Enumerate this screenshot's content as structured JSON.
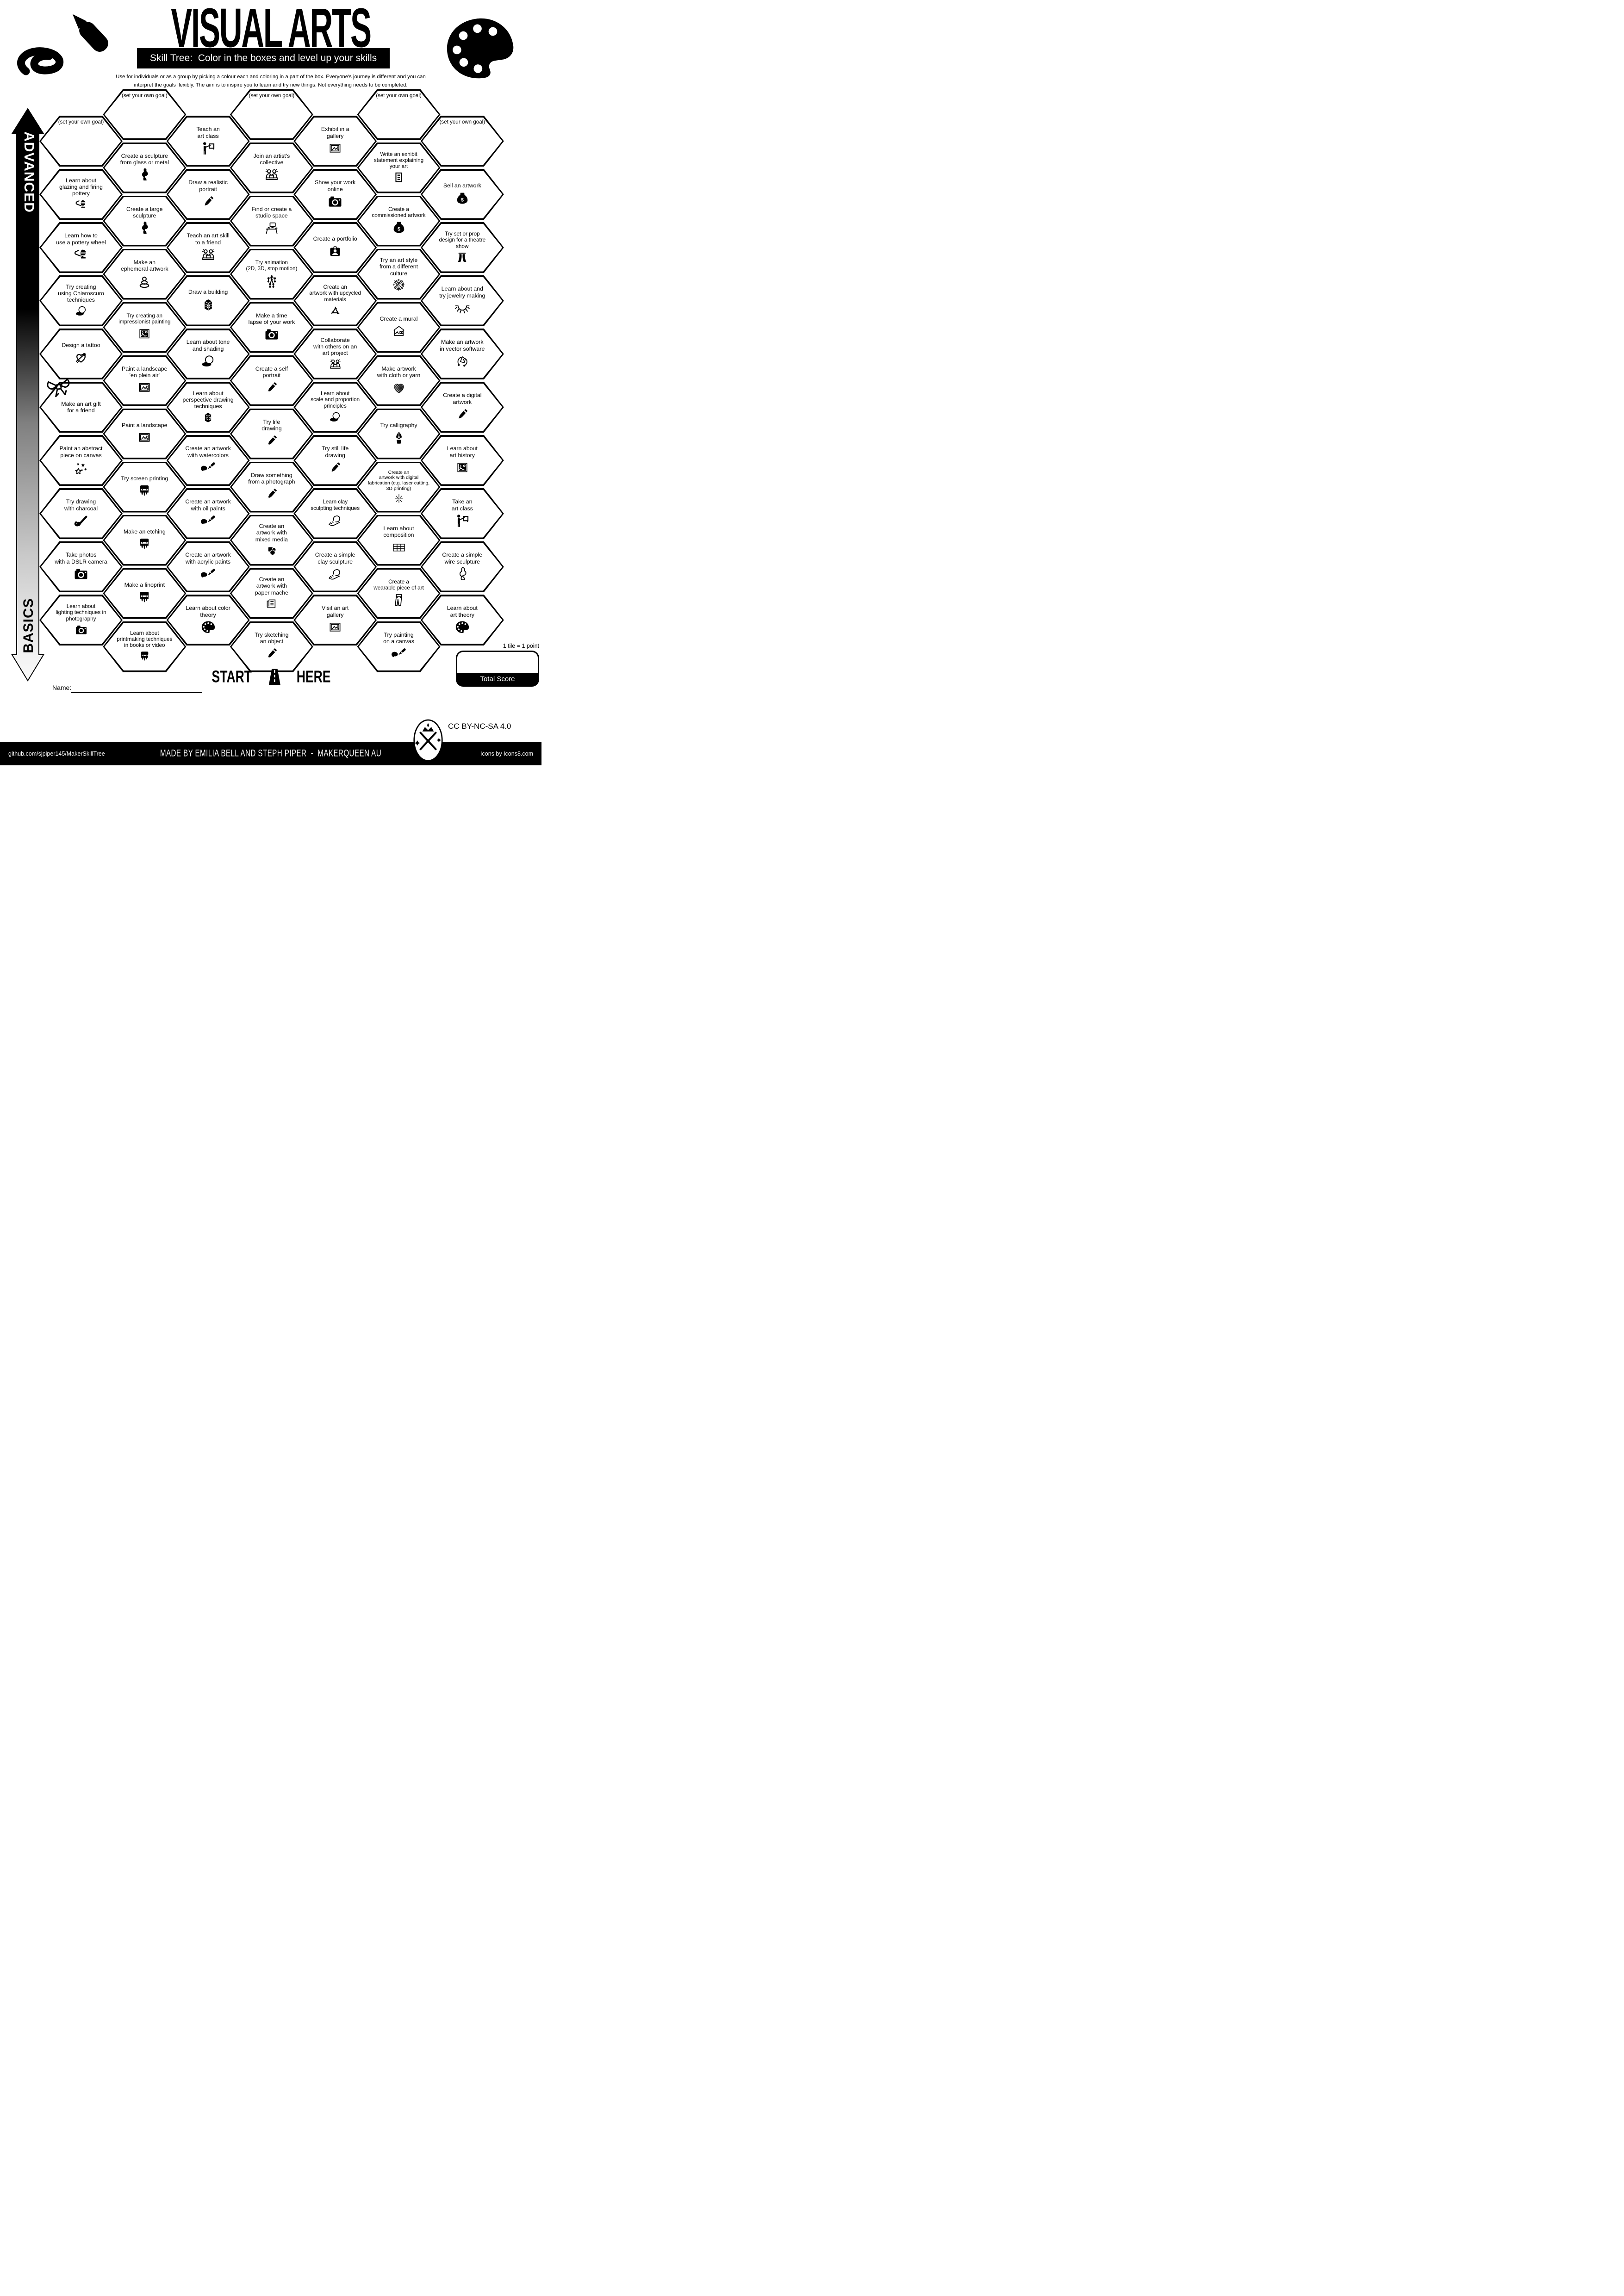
{
  "header": {
    "title": "VISUAL ARTS",
    "subtitle": "Skill Tree:  Color in the boxes and level up your skills",
    "description": "Use for individuals or as a group by picking a colour each and coloring in a part of the box.  Everyone's journey is different and you can\ninterpret the goals flexibly.  The aim is to inspire you to learn and try new things. Not everything needs to be completed."
  },
  "axis": {
    "top_label": "ADVANCED",
    "bottom_label": "BASICS"
  },
  "start": {
    "start_label": "START",
    "here_label": "HERE",
    "icon": "road-icon"
  },
  "score": {
    "note": "1 tile = 1 point",
    "total_label": "Total Score"
  },
  "name_label": "Name:",
  "license": "CC BY-NC-SA 4.0",
  "footer": {
    "left": "github.com/sjpiper145/MakerSkillTree",
    "center": "MADE BY EMILIA BELL AND STEPH PIPER  -  MAKERQUEEN AU",
    "right": "Icons by Icons8.com"
  },
  "tiles": [
    {
      "c": 0,
      "r": 0,
      "t": "(set your own goal)",
      "i": null,
      "goal": true
    },
    {
      "c": 0,
      "r": 1,
      "t": "Learn about\nglazing and firing\npottery",
      "i": "pottery-icon"
    },
    {
      "c": 0,
      "r": 2,
      "t": "Learn how to\nuse a pottery wheel",
      "i": "pottery-icon"
    },
    {
      "c": 0,
      "r": 3,
      "t": "Try creating\nusing Chiaroscuro\ntechniques",
      "i": "sphere-shadow-icon"
    },
    {
      "c": 0,
      "r": 4,
      "t": "Design a tattoo",
      "i": "tattoo-heart-icon"
    },
    {
      "c": 0,
      "r": 5,
      "t": "Make an art gift\nfor a friend",
      "i": null
    },
    {
      "c": 0,
      "r": 6,
      "t": "Paint an abstract\npiece on canvas",
      "i": "abstract-stars-icon"
    },
    {
      "c": 0,
      "r": 7,
      "t": "Try drawing\nwith charcoal",
      "i": "charcoal-icon"
    },
    {
      "c": 0,
      "r": 8,
      "t": "Take photos\nwith a DSLR camera",
      "i": "camera-icon"
    },
    {
      "c": 0,
      "r": 9,
      "t": "Learn about\nlighting techniques in\nphotography",
      "i": "camera-icon"
    },
    {
      "c": 1,
      "r": 0,
      "t": "(set your own goal)",
      "i": null,
      "goal": true
    },
    {
      "c": 1,
      "r": 1,
      "t": "Create a sculpture\nfrom glass or metal",
      "i": "sculpture-icon"
    },
    {
      "c": 1,
      "r": 2,
      "t": "Create a large\nsculpture",
      "i": "sculpture-icon"
    },
    {
      "c": 1,
      "r": 3,
      "t": "Make an\nephemeral artwork",
      "i": "stones-icon"
    },
    {
      "c": 1,
      "r": 4,
      "t": "Try creating an\nimpressionist painting",
      "i": "framed-art-icon"
    },
    {
      "c": 1,
      "r": 5,
      "t": "Paint a landscape\n'en plein air'",
      "i": "picture-frame-icon"
    },
    {
      "c": 1,
      "r": 6,
      "t": "Paint a landscape",
      "i": "picture-frame-icon"
    },
    {
      "c": 1,
      "r": 7,
      "t": "Try screen printing",
      "i": "squeegee-icon"
    },
    {
      "c": 1,
      "r": 8,
      "t": "Make an etching",
      "i": "squeegee-icon"
    },
    {
      "c": 1,
      "r": 9,
      "t": "Make a linoprint",
      "i": "squeegee-icon"
    },
    {
      "c": 1,
      "r": 10,
      "t": "Learn about\nprintmaking techniques\nin books or video",
      "i": "squeegee-icon"
    },
    {
      "c": 2,
      "r": 0,
      "t": "Teach an\nart class",
      "i": "teacher-icon"
    },
    {
      "c": 2,
      "r": 1,
      "t": "Draw a realistic\nportrait",
      "i": "pencil-icon"
    },
    {
      "c": 2,
      "r": 2,
      "t": "Teach an art skill\nto a friend",
      "i": "two-people-icon"
    },
    {
      "c": 2,
      "r": 3,
      "t": "Draw a building",
      "i": "building-icon"
    },
    {
      "c": 2,
      "r": 4,
      "t": "Learn about tone\nand shading",
      "i": "sphere-shadow-icon"
    },
    {
      "c": 2,
      "r": 5,
      "t": "Learn about\nperspective drawing\ntechniques",
      "i": "building-icon"
    },
    {
      "c": 2,
      "r": 6,
      "t": "Create an artwork\nwith watercolors",
      "i": "paintbrush-icon"
    },
    {
      "c": 2,
      "r": 7,
      "t": "Create an artwork\nwith oil paints",
      "i": "paintbrush-icon"
    },
    {
      "c": 2,
      "r": 8,
      "t": "Create an artwork\nwith acrylic paints",
      "i": "paintbrush-icon"
    },
    {
      "c": 2,
      "r": 9,
      "t": "Learn about color\ntheory",
      "i": "palette-icon"
    },
    {
      "c": 3,
      "r": 0,
      "t": "(set your own goal)",
      "i": null,
      "goal": true
    },
    {
      "c": 3,
      "r": 1,
      "t": "Join an artist's\ncollective",
      "i": "two-people-icon"
    },
    {
      "c": 3,
      "r": 2,
      "t": "Find or create a\nstudio space",
      "i": "desk-icon"
    },
    {
      "c": 3,
      "r": 3,
      "t": "Try animation\n(2D, 3D, stop motion)",
      "i": "animation-icon"
    },
    {
      "c": 3,
      "r": 4,
      "t": "Make a time\nlapse of your work",
      "i": "camera-icon"
    },
    {
      "c": 3,
      "r": 5,
      "t": "Create a self\nportrait",
      "i": "pencil-icon"
    },
    {
      "c": 3,
      "r": 6,
      "t": "Try life\ndrawing",
      "i": "pencil-icon"
    },
    {
      "c": 3,
      "r": 7,
      "t": "Draw something\nfrom a photograph",
      "i": "pencil-icon"
    },
    {
      "c": 3,
      "r": 8,
      "t": "Create an\nartwork with\nmixed media",
      "i": "shapes-icon"
    },
    {
      "c": 3,
      "r": 9,
      "t": "Create an\nartwork with\npaper mache",
      "i": "newspaper-icon"
    },
    {
      "c": 3,
      "r": 10,
      "t": "Try sketching\nan object",
      "i": "pencil-icon"
    },
    {
      "c": 4,
      "r": 0,
      "t": "Exhibit in a\ngallery",
      "i": "picture-frame-icon"
    },
    {
      "c": 4,
      "r": 1,
      "t": "Show your work\nonline",
      "i": "camera-icon"
    },
    {
      "c": 4,
      "r": 2,
      "t": "Create a portfolio",
      "i": "badge-icon"
    },
    {
      "c": 4,
      "r": 3,
      "t": "Create an\nartwork with upcycled\nmaterials",
      "i": "recycle-icon"
    },
    {
      "c": 4,
      "r": 4,
      "t": "Collaborate\nwith others on an\nart project",
      "i": "two-people-icon"
    },
    {
      "c": 4,
      "r": 5,
      "t": "Learn about\nscale and proportion\nprinciples",
      "i": "sphere-shadow-icon"
    },
    {
      "c": 4,
      "r": 6,
      "t": "Try still life\ndrawing",
      "i": "pencil-icon"
    },
    {
      "c": 4,
      "r": 7,
      "t": "Learn clay\nsculpting techniques",
      "i": "clay-hand-icon"
    },
    {
      "c": 4,
      "r": 8,
      "t": "Create a simple\nclay sculpture",
      "i": "clay-hand-icon"
    },
    {
      "c": 4,
      "r": 9,
      "t": "Visit an art\ngallery",
      "i": "picture-frame-icon"
    },
    {
      "c": 5,
      "r": 0,
      "t": "(set your own goal)",
      "i": null,
      "goal": true
    },
    {
      "c": 5,
      "r": 1,
      "t": "Write an exhibit\nstatement explaining\nyour art",
      "i": "document-icon"
    },
    {
      "c": 5,
      "r": 2,
      "t": "Create a\ncommissioned artwork",
      "i": "money-bag-icon"
    },
    {
      "c": 5,
      "r": 3,
      "t": "Try an art style\nfrom a different\nculture",
      "i": "mandala-icon"
    },
    {
      "c": 5,
      "r": 4,
      "t": "Create a mural",
      "i": "house-icon"
    },
    {
      "c": 5,
      "r": 5,
      "t": "Make artwork\nwith cloth or yarn",
      "i": "stitch-heart-icon"
    },
    {
      "c": 5,
      "r": 6,
      "t": "Try calligraphy",
      "i": "calligraphy-nib-icon"
    },
    {
      "c": 5,
      "r": 7,
      "t": "Create an\nartwork with digital\nfabrication (e.g. laser cutting,\n3D printing)",
      "i": "laser-icon"
    },
    {
      "c": 5,
      "r": 8,
      "t": "Learn about\ncomposition",
      "i": "grid-icon"
    },
    {
      "c": 5,
      "r": 9,
      "t": "Create a\nwearable piece of art",
      "i": "pants-icon"
    },
    {
      "c": 5,
      "r": 10,
      "t": "Try painting\non a canvas",
      "i": "paintbrush-icon"
    },
    {
      "c": 6,
      "r": 0,
      "t": "(set your own goal)",
      "i": null,
      "goal": true
    },
    {
      "c": 6,
      "r": 1,
      "t": "Sell an artwork",
      "i": "money-bag-icon"
    },
    {
      "c": 6,
      "r": 2,
      "t": "Try set or prop\ndesign for a theatre\nshow",
      "i": "curtains-icon"
    },
    {
      "c": 6,
      "r": 3,
      "t": "Learn about and\ntry jewelry making",
      "i": "necklace-icon"
    },
    {
      "c": 6,
      "r": 4,
      "t": "Make an artwork\nin vector software",
      "i": "pen-tool-icon"
    },
    {
      "c": 6,
      "r": 5,
      "t": "Create a digital\nartwork",
      "i": "pencil-icon"
    },
    {
      "c": 6,
      "r": 6,
      "t": "Learn about\nart history",
      "i": "framed-art-icon"
    },
    {
      "c": 6,
      "r": 7,
      "t": "Take an\nart class",
      "i": "teacher-icon"
    },
    {
      "c": 6,
      "r": 8,
      "t": "Create a simple\nwire sculpture",
      "i": "wire-figure-icon"
    },
    {
      "c": 6,
      "r": 9,
      "t": "Learn about\nart theory",
      "i": "palette-icon"
    }
  ]
}
